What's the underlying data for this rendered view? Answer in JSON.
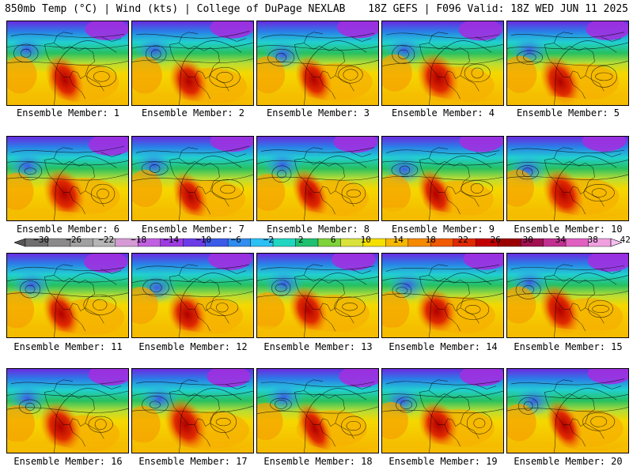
{
  "header": {
    "left": "850mb Temp (°C) | Wind (kts) | College of DuPage NEXLAB",
    "right": "18Z GEFS | F096 Valid: 18Z WED JUN 11 2025"
  },
  "members": [
    "Ensemble Member: 1",
    "Ensemble Member: 2",
    "Ensemble Member: 3",
    "Ensemble Member: 4",
    "Ensemble Member: 5",
    "Ensemble Member: 6",
    "Ensemble Member: 7",
    "Ensemble Member: 8",
    "Ensemble Member: 9",
    "Ensemble Member: 10",
    "Ensemble Member: 11",
    "Ensemble Member: 12",
    "Ensemble Member: 13",
    "Ensemble Member: 14",
    "Ensemble Member: 15",
    "Ensemble Member: 16",
    "Ensemble Member: 17",
    "Ensemble Member: 18",
    "Ensemble Member: 19",
    "Ensemble Member: 20"
  ],
  "colorbar": {
    "ticks": [
      "−30",
      "−26",
      "−22",
      "−18",
      "−14",
      "−10",
      "−6",
      "−2",
      "2",
      "6",
      "10",
      "14",
      "18",
      "22",
      "26",
      "30",
      "34",
      "38",
      "42"
    ],
    "colors": [
      "#6e6e6e",
      "#8a8a8a",
      "#a0a0a0",
      "#b5b5b5",
      "#d59ad5",
      "#c060e0",
      "#9d3ce0",
      "#6a3ce8",
      "#3b5be8",
      "#2f8cf0",
      "#2cc0f5",
      "#21d6c0",
      "#1fc070",
      "#7ed23a",
      "#d8e23a",
      "#f5e000",
      "#f5b800",
      "#f58a00",
      "#f05a00",
      "#e02a00",
      "#c00000",
      "#9a0000",
      "#a01050",
      "#c03090",
      "#e060c0",
      "#f0a0e0"
    ]
  }
}
